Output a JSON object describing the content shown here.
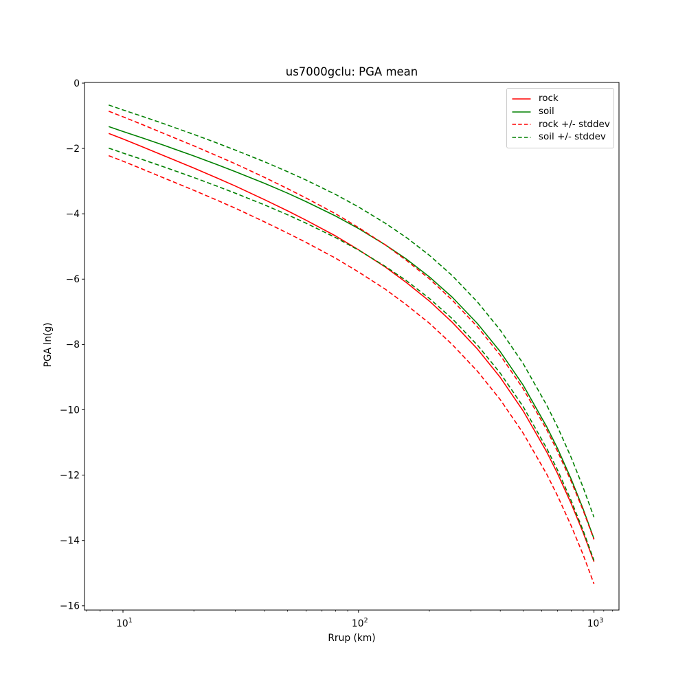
{
  "chart_data": {
    "type": "line",
    "title": "us7000gclu: PGA mean",
    "xlabel": "Rrup (km)",
    "ylabel": "PGA ln(g)",
    "x_scale": "log",
    "y_scale": "linear",
    "xlim": [
      6.9,
      1265
    ],
    "ylim": [
      -16.1,
      0.1
    ],
    "grid": false,
    "x_major_ticks": [
      {
        "value": 10,
        "base": "10",
        "exp": "1"
      },
      {
        "value": 100,
        "base": "10",
        "exp": "2"
      },
      {
        "value": 1000,
        "base": "10",
        "exp": "3"
      }
    ],
    "x_minor_ticks": [
      7,
      8,
      9,
      20,
      30,
      40,
      50,
      60,
      70,
      80,
      90,
      200,
      300,
      400,
      500,
      600,
      700,
      800,
      900,
      1100,
      1200
    ],
    "y_ticks": [
      {
        "value": 0,
        "label": "0"
      },
      {
        "value": -2,
        "label": "−2"
      },
      {
        "value": -4,
        "label": "−4"
      },
      {
        "value": -6,
        "label": "−6"
      },
      {
        "value": -8,
        "label": "−8"
      },
      {
        "value": -10,
        "label": "−10"
      },
      {
        "value": -12,
        "label": "−12"
      },
      {
        "value": -14,
        "label": "−14"
      },
      {
        "value": -16,
        "label": "−16"
      }
    ],
    "x": [
      8.7,
      10,
      12,
      15,
      20,
      25,
      30,
      40,
      50,
      60,
      80,
      100,
      130,
      160,
      200,
      250,
      320,
      400,
      500,
      630,
      700,
      800,
      900,
      1000
    ],
    "series": [
      {
        "name": "rock",
        "color": "#ff0000",
        "style": "solid",
        "values": [
          -1.54,
          -1.71,
          -1.94,
          -2.23,
          -2.6,
          -2.9,
          -3.15,
          -3.57,
          -3.91,
          -4.2,
          -4.68,
          -5.1,
          -5.63,
          -6.11,
          -6.67,
          -7.32,
          -8.14,
          -9.01,
          -10.03,
          -11.29,
          -11.95,
          -12.87,
          -13.76,
          -14.65
        ]
      },
      {
        "name": "soil",
        "color": "#008000",
        "style": "solid",
        "values": [
          -1.33,
          -1.48,
          -1.67,
          -1.91,
          -2.23,
          -2.49,
          -2.71,
          -3.07,
          -3.37,
          -3.63,
          -4.07,
          -4.45,
          -4.95,
          -5.39,
          -5.93,
          -6.55,
          -7.36,
          -8.22,
          -9.24,
          -10.52,
          -11.18,
          -12.12,
          -13.04,
          -13.95
        ]
      },
      {
        "name": "rock + stddev",
        "color": "#ff0000",
        "style": "dashed",
        "values": [
          -0.86,
          -1.03,
          -1.26,
          -1.55,
          -1.92,
          -2.22,
          -2.47,
          -2.89,
          -3.23,
          -3.52,
          -4.0,
          -4.42,
          -4.95,
          -5.43,
          -5.99,
          -6.64,
          -7.46,
          -8.33,
          -9.35,
          -10.61,
          -11.27,
          -12.19,
          -13.08,
          -13.97
        ]
      },
      {
        "name": "rock - stddev",
        "color": "#ff0000",
        "style": "dashed",
        "values": [
          -2.22,
          -2.39,
          -2.62,
          -2.91,
          -3.28,
          -3.58,
          -3.83,
          -4.25,
          -4.59,
          -4.88,
          -5.36,
          -5.78,
          -6.31,
          -6.79,
          -7.35,
          -8.0,
          -8.82,
          -9.69,
          -10.71,
          -11.97,
          -12.63,
          -13.55,
          -14.44,
          -15.33
        ]
      },
      {
        "name": "soil + stddev",
        "color": "#008000",
        "style": "dashed",
        "values": [
          -0.67,
          -0.82,
          -1.01,
          -1.25,
          -1.57,
          -1.83,
          -2.05,
          -2.41,
          -2.71,
          -2.97,
          -3.41,
          -3.79,
          -4.29,
          -4.73,
          -5.27,
          -5.89,
          -6.7,
          -7.56,
          -8.58,
          -9.86,
          -10.52,
          -11.46,
          -12.38,
          -13.29
        ]
      },
      {
        "name": "soil - stddev",
        "color": "#008000",
        "style": "dashed",
        "values": [
          -1.99,
          -2.14,
          -2.33,
          -2.57,
          -2.89,
          -3.15,
          -3.37,
          -3.73,
          -4.03,
          -4.29,
          -4.73,
          -5.11,
          -5.61,
          -6.05,
          -6.59,
          -7.21,
          -8.02,
          -8.88,
          -9.9,
          -11.18,
          -11.84,
          -12.78,
          -13.7,
          -14.61
        ]
      }
    ],
    "rock_stddev": 0.68,
    "soil_stddev": 0.66,
    "legend": {
      "position": "upper right",
      "entries": [
        {
          "label": "rock",
          "color": "#ff0000",
          "style": "solid"
        },
        {
          "label": "soil",
          "color": "#008000",
          "style": "solid"
        },
        {
          "label": "rock +/- stddev",
          "color": "#ff0000",
          "style": "dashed"
        },
        {
          "label": "soil +/- stddev",
          "color": "#008000",
          "style": "dashed"
        }
      ]
    }
  }
}
